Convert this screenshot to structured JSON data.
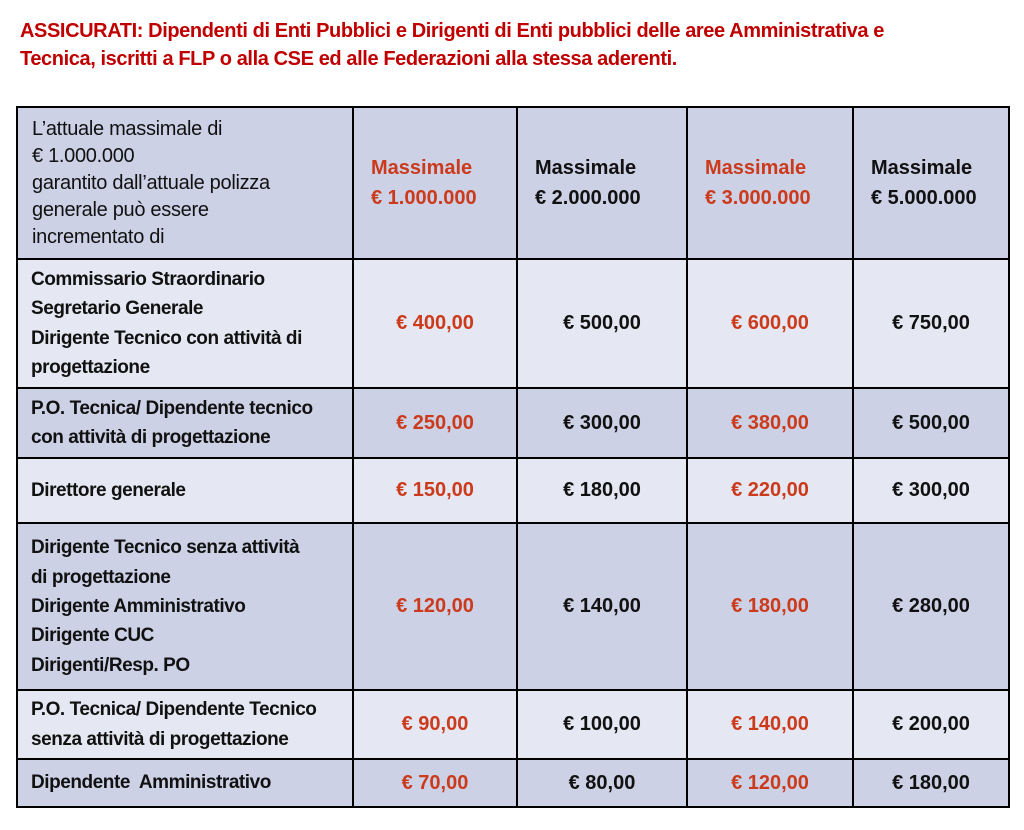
{
  "colors": {
    "title_red": "#C00000",
    "accent_red": "#CC3A1C",
    "row_dark_bg": "#CCD1E6",
    "row_light_bg": "#E5E8F2",
    "border": "#000000",
    "text": "#111111"
  },
  "title": {
    "text": "ASSICURATI: Dipendenti di Enti Pubblici e Dirigenti di Enti pubblici delle aree Amministrativa e\nTecnica, iscritti a FLP o alla CSE ed alle Federazioni alla stessa aderenti."
  },
  "table": {
    "corner_header": "L’attuale massimale di\n€ 1.000.000\ngarantito dall’attuale polizza\ngenerale può essere\nincrementato di",
    "columns": [
      {
        "label": "Massimale\n€ 1.000.000",
        "red": true
      },
      {
        "label": "Massimale\n€ 2.000.000",
        "red": false
      },
      {
        "label": "Massimale\n€ 3.000.000",
        "red": true
      },
      {
        "label": "Massimale\n€ 5.000.000",
        "red": false
      }
    ],
    "rows": [
      {
        "label": "Commissario Straordinario\nSegretario Generale\nDirigente Tecnico con attività di\nprogettazione",
        "values": [
          "€ 400,00",
          "€ 500,00",
          "€ 600,00",
          "€ 750,00"
        ]
      },
      {
        "label": "P.O. Tecnica/ Dipendente tecnico\ncon attività di progettazione",
        "values": [
          "€ 250,00",
          "€ 300,00",
          "€ 380,00",
          "€ 500,00"
        ]
      },
      {
        "label": "Direttore generale",
        "values": [
          "€ 150,00",
          "€ 180,00",
          "€ 220,00",
          "€ 300,00"
        ]
      },
      {
        "label": "Dirigente Tecnico senza attività\ndi progettazione\nDirigente Amministrativo\nDirigente CUC\nDirigenti/Resp. PO",
        "values": [
          "€ 120,00",
          "€ 140,00",
          "€ 180,00",
          "€ 280,00"
        ]
      },
      {
        "label": "P.O. Tecnica/ Dipendente Tecnico\nsenza attività di progettazione",
        "values": [
          "€ 90,00",
          "€ 100,00",
          "€ 140,00",
          "€ 200,00"
        ]
      },
      {
        "label": "Dipendente  Amministrativo",
        "values": [
          "€ 70,00",
          "€ 80,00",
          "€ 120,00",
          "€ 180,00"
        ]
      }
    ]
  }
}
